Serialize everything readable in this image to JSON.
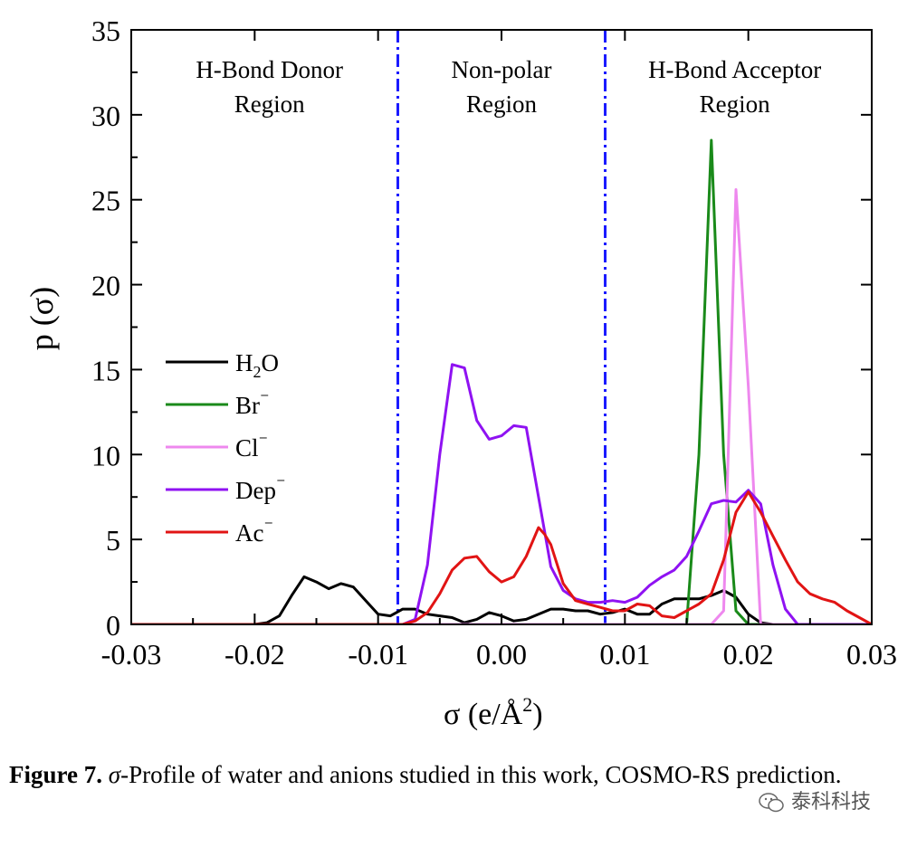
{
  "chart_data": {
    "type": "line",
    "title": "",
    "xlabel": "σ (e/Å",
    "xlabel_sup": "2",
    "xlabel_tail": ")",
    "ylabel": "p (σ)",
    "xlim": [
      -0.03,
      0.03
    ],
    "ylim": [
      0,
      35
    ],
    "xticks": [
      -0.03,
      -0.02,
      -0.01,
      0.0,
      0.01,
      0.02,
      0.03
    ],
    "xtick_labels": [
      "-0.03",
      "-0.02",
      "-0.01",
      "0.00",
      "0.01",
      "0.02",
      "0.03"
    ],
    "yticks": [
      0,
      5,
      10,
      15,
      20,
      25,
      30,
      35
    ],
    "ytick_labels": [
      "0",
      "5",
      "10",
      "15",
      "20",
      "25",
      "30",
      "35"
    ],
    "region_lines": [
      -0.0084,
      0.0084
    ],
    "regions": [
      {
        "line1": "H-Bond Donor",
        "line2": "Region",
        "x": -0.0188
      },
      {
        "line1": "Non-polar",
        "line2": "Region",
        "x": 0.0
      },
      {
        "line1": "H-Bond Acceptor",
        "line2": "Region",
        "x": 0.0189
      }
    ],
    "series": [
      {
        "name": "H2O",
        "label_base": "H",
        "label_sub": "2",
        "label_tail": "O",
        "color": "#000000",
        "x": [
          -0.03,
          -0.02,
          -0.019,
          -0.018,
          -0.017,
          -0.016,
          -0.015,
          -0.014,
          -0.013,
          -0.012,
          -0.011,
          -0.01,
          -0.009,
          -0.008,
          -0.007,
          -0.006,
          -0.005,
          -0.004,
          -0.003,
          -0.002,
          -0.001,
          0.0,
          0.001,
          0.002,
          0.003,
          0.004,
          0.005,
          0.006,
          0.007,
          0.008,
          0.009,
          0.01,
          0.011,
          0.012,
          0.013,
          0.014,
          0.015,
          0.016,
          0.017,
          0.018,
          0.019,
          0.02,
          0.021,
          0.022,
          0.023,
          0.03
        ],
        "y": [
          0,
          0,
          0.1,
          0.5,
          1.7,
          2.8,
          2.5,
          2.1,
          2.4,
          2.2,
          1.4,
          0.6,
          0.5,
          0.9,
          0.9,
          0.6,
          0.5,
          0.4,
          0.1,
          0.3,
          0.7,
          0.5,
          0.2,
          0.3,
          0.6,
          0.9,
          0.9,
          0.8,
          0.8,
          0.6,
          0.7,
          0.9,
          0.6,
          0.6,
          1.2,
          1.5,
          1.5,
          1.5,
          1.7,
          2.0,
          1.6,
          0.6,
          0.1,
          0.0,
          0.0,
          0
        ]
      },
      {
        "name": "Br⁻",
        "label_base": "Br",
        "label_sup": "⁻",
        "color": "#1a8a1a",
        "x": [
          -0.03,
          0.015,
          0.016,
          0.017,
          0.018,
          0.019,
          0.02,
          0.03
        ],
        "y": [
          0,
          0,
          10.0,
          28.5,
          10.0,
          0.8,
          0,
          0
        ]
      },
      {
        "name": "Cl⁻",
        "label_base": "Cl",
        "label_sup": "⁻",
        "color": "#ee88ee",
        "x": [
          -0.03,
          0.017,
          0.018,
          0.019,
          0.02,
          0.021,
          0.03
        ],
        "y": [
          0,
          0,
          0.8,
          25.6,
          14.0,
          0.0,
          0
        ]
      },
      {
        "name": "Dep⁻",
        "label_base": "Dep",
        "label_sup": "⁻",
        "color": "#8f12f2",
        "x": [
          -0.03,
          -0.008,
          -0.007,
          -0.006,
          -0.005,
          -0.004,
          -0.003,
          -0.002,
          -0.001,
          0.0,
          0.001,
          0.002,
          0.003,
          0.004,
          0.005,
          0.006,
          0.007,
          0.008,
          0.009,
          0.01,
          0.011,
          0.012,
          0.013,
          0.014,
          0.015,
          0.016,
          0.017,
          0.018,
          0.019,
          0.02,
          0.021,
          0.022,
          0.023,
          0.024,
          0.03
        ],
        "y": [
          0,
          0,
          0.3,
          3.5,
          10.0,
          15.3,
          15.1,
          12.0,
          10.9,
          11.1,
          11.7,
          11.6,
          7.5,
          3.4,
          2.0,
          1.5,
          1.3,
          1.3,
          1.4,
          1.3,
          1.6,
          2.3,
          2.8,
          3.2,
          4.0,
          5.5,
          7.1,
          7.3,
          7.2,
          7.9,
          7.1,
          3.5,
          0.9,
          0.0,
          0
        ]
      },
      {
        "name": "Ac⁻",
        "label_base": "Ac",
        "label_sup": "⁻",
        "color": "#e11414",
        "x": [
          -0.03,
          -0.008,
          -0.007,
          -0.006,
          -0.005,
          -0.004,
          -0.003,
          -0.002,
          -0.001,
          0.0,
          0.001,
          0.002,
          0.003,
          0.0035,
          0.004,
          0.005,
          0.006,
          0.007,
          0.008,
          0.009,
          0.01,
          0.011,
          0.012,
          0.013,
          0.014,
          0.015,
          0.016,
          0.017,
          0.018,
          0.019,
          0.02,
          0.021,
          0.022,
          0.023,
          0.024,
          0.025,
          0.026,
          0.027,
          0.028,
          0.029,
          0.03
        ],
        "y": [
          0,
          0,
          0.2,
          0.7,
          1.8,
          3.2,
          3.9,
          4.0,
          3.1,
          2.5,
          2.8,
          4.0,
          5.7,
          5.3,
          4.7,
          2.4,
          1.4,
          1.2,
          1.0,
          0.8,
          0.8,
          1.2,
          1.1,
          0.5,
          0.4,
          0.8,
          1.2,
          1.8,
          3.8,
          6.6,
          7.8,
          6.6,
          5.2,
          3.8,
          2.5,
          1.8,
          1.5,
          1.3,
          0.8,
          0.4,
          0.0
        ]
      }
    ],
    "legend_position": "left-middle"
  },
  "caption": {
    "label": "Figure 7.",
    "sigma": "σ",
    "text": "-Profile of water and anions studied in this work, COSMO-RS prediction."
  },
  "watermark": {
    "text": "泰科科技"
  }
}
